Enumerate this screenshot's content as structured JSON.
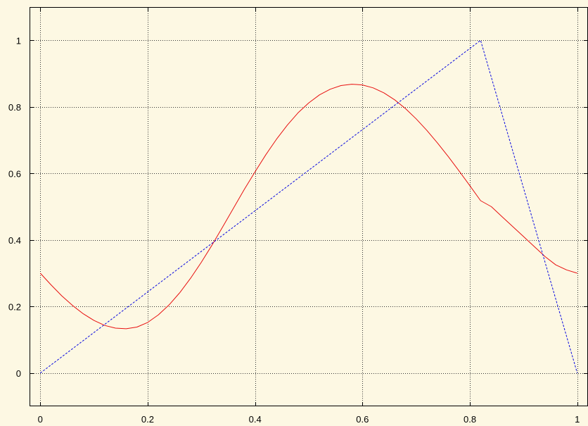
{
  "chart_data": {
    "type": "line",
    "title": "",
    "xlabel": "",
    "ylabel": "",
    "xlim": [
      -0.02,
      1.02
    ],
    "ylim": [
      -0.1,
      1.1
    ],
    "grid": true,
    "legend": "none",
    "x_ticks": [
      "0",
      "0.2",
      "0.4",
      "0.6",
      "0.8",
      "1"
    ],
    "y_ticks": [
      "0",
      "0.2",
      "0.4",
      "0.6",
      "0.8",
      "1"
    ],
    "colors": {
      "background": "#fdf8e3",
      "grid": "#333333",
      "axis": "#000000",
      "series_red": "#e81010",
      "series_blue": "#0a0ae0"
    },
    "series": [
      {
        "style": "solid",
        "color": "#e81010",
        "x": [
          0,
          0.02,
          0.04,
          0.06,
          0.08,
          0.1,
          0.12,
          0.14,
          0.16,
          0.18,
          0.2,
          0.22,
          0.24,
          0.26,
          0.28,
          0.3,
          0.32,
          0.34,
          0.36,
          0.38,
          0.4,
          0.42,
          0.44,
          0.46,
          0.48,
          0.5,
          0.52,
          0.54,
          0.56,
          0.58,
          0.6,
          0.62,
          0.64,
          0.66,
          0.68,
          0.7,
          0.72,
          0.74,
          0.76,
          0.78,
          0.8,
          0.82,
          0.84,
          0.86,
          0.88,
          0.9,
          0.92,
          0.94,
          0.96,
          0.98,
          1
        ],
        "y": [
          0.3,
          0.265,
          0.232,
          0.203,
          0.178,
          0.158,
          0.143,
          0.135,
          0.133,
          0.138,
          0.152,
          0.175,
          0.205,
          0.242,
          0.285,
          0.333,
          0.385,
          0.44,
          0.496,
          0.552,
          0.605,
          0.656,
          0.703,
          0.745,
          0.782,
          0.812,
          0.836,
          0.853,
          0.864,
          0.868,
          0.866,
          0.857,
          0.842,
          0.821,
          0.795,
          0.764,
          0.729,
          0.691,
          0.65,
          0.607,
          0.563,
          0.518,
          0.5,
          0.47,
          0.44,
          0.41,
          0.38,
          0.35,
          0.325,
          0.31,
          0.3
        ]
      },
      {
        "style": "dashed",
        "color": "#0a0ae0",
        "x": [
          0,
          0.82,
          1
        ],
        "y": [
          0,
          1,
          0
        ]
      }
    ]
  }
}
